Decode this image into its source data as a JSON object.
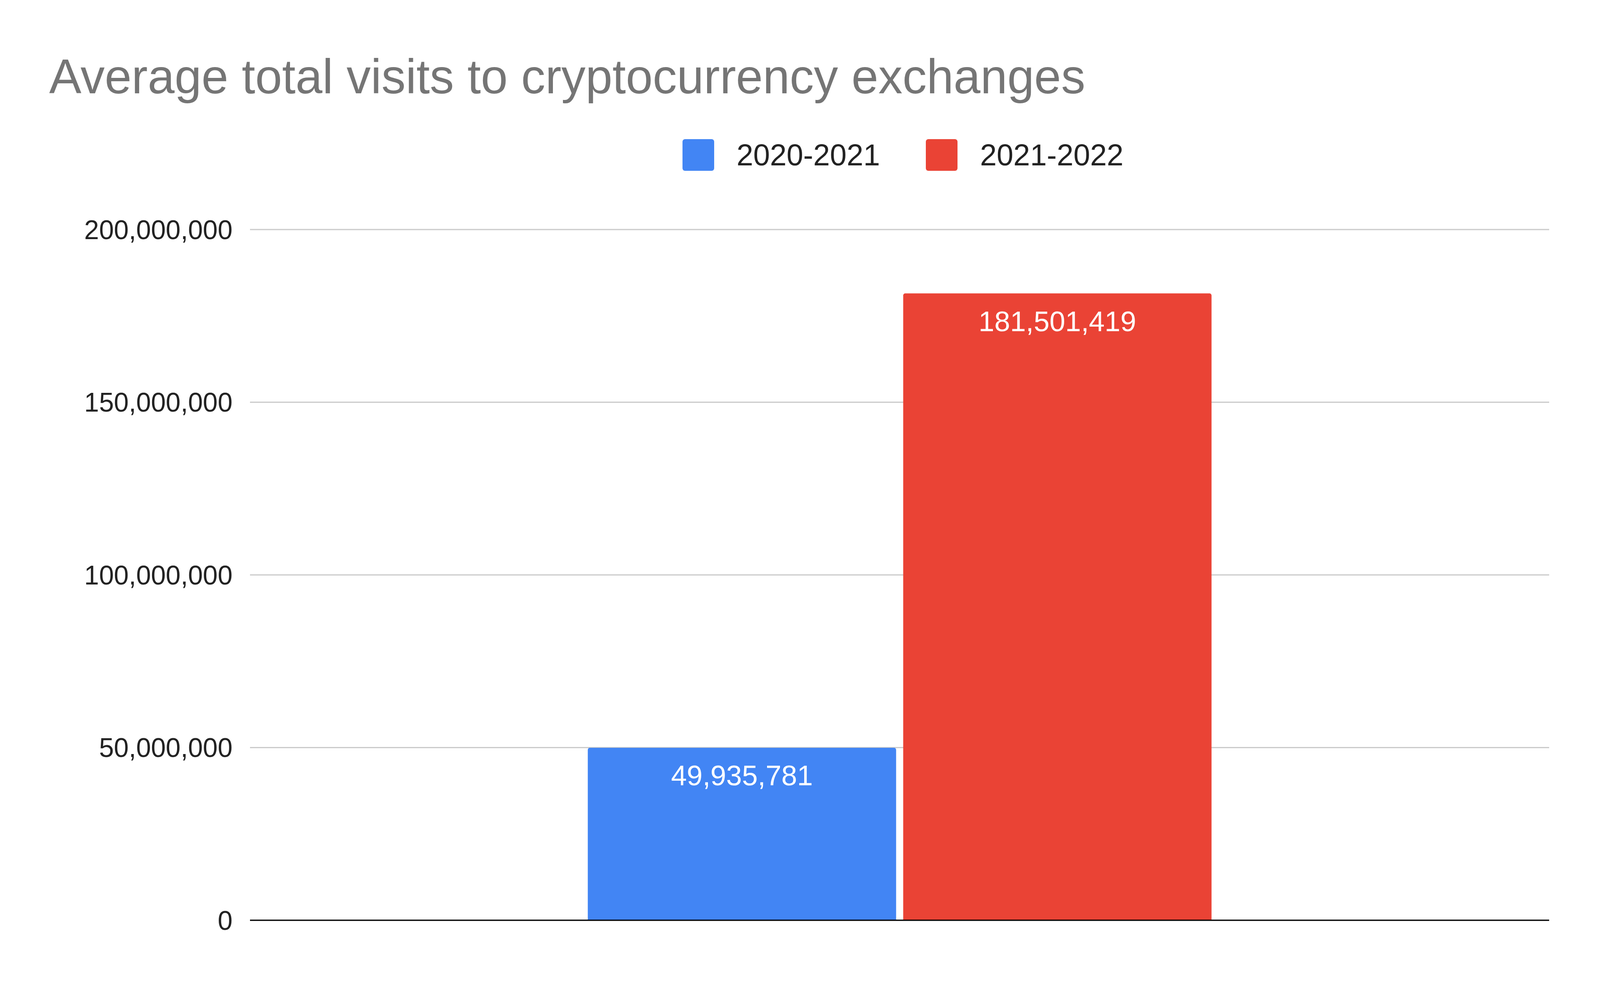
{
  "chart_data": {
    "type": "bar",
    "title": "Average total visits to cryptocurrency exchanges",
    "categories": [
      null
    ],
    "series": [
      {
        "name": "2020-2021",
        "color": "#4285f4",
        "values": [
          49935781
        ],
        "value_labels": [
          "49,935,781"
        ]
      },
      {
        "name": "2021-2022",
        "color": "#ea4335",
        "values": [
          181501419
        ],
        "value_labels": [
          "181,501,419"
        ]
      }
    ],
    "ylim": [
      0,
      200000000
    ],
    "yticks": [
      {
        "value": 0,
        "label": "0"
      },
      {
        "value": 50000000,
        "label": "50,000,000"
      },
      {
        "value": 100000000,
        "label": "100,000,000"
      },
      {
        "value": 150000000,
        "label": "150,000,000"
      },
      {
        "value": 200000000,
        "label": "200,000,000"
      }
    ],
    "grid": true,
    "legend": "top",
    "data_labels": true
  }
}
